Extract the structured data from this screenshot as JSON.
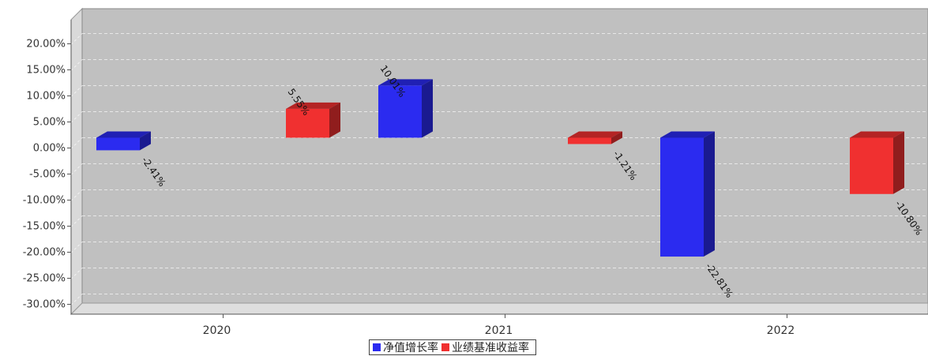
{
  "chart_data": {
    "type": "bar",
    "categories": [
      "2020",
      "2021",
      "2022"
    ],
    "series": [
      {
        "name": "净值增长率",
        "values": [
          -2.41,
          10.01,
          -22.81
        ],
        "labels": [
          "-2.41%",
          "10.01%",
          "-22.81%"
        ],
        "color": "#2b2bf0"
      },
      {
        "name": "业绩基准收益率",
        "values": [
          5.55,
          -1.21,
          -10.8
        ],
        "labels": [
          "5.55%",
          "-1.21%",
          "-10.80%"
        ],
        "color": "#f03030"
      }
    ],
    "yticks": [
      "20.00%",
      "15.00%",
      "10.00%",
      "5.00%",
      "0.00%",
      "-5.00%",
      "-10.00%",
      "-15.00%",
      "-20.00%",
      "-25.00%",
      "-30.00%"
    ],
    "ylim": [
      -32,
      25
    ],
    "grid": true,
    "legend_position": "bottom-center",
    "background": "#c0c0c0"
  }
}
